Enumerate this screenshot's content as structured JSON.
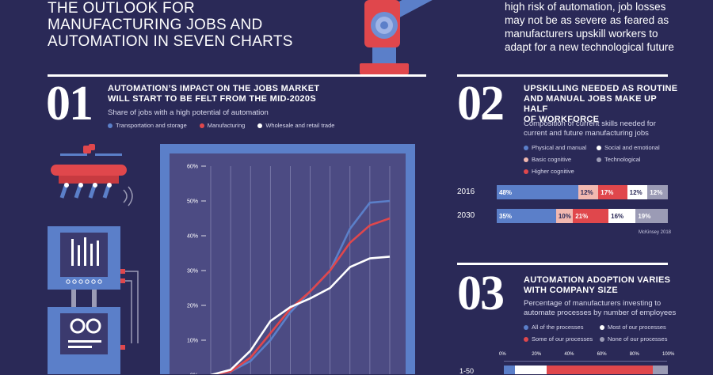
{
  "header": {
    "title_lines": [
      "THE OUTLOOK FOR",
      "MANUFACTURING JOBS AND",
      "AUTOMATION IN SEVEN CHARTS"
    ],
    "intro_lines": [
      "high risk of automation, job losses",
      "may not be as severe as feared as",
      "manufacturers upskill workers to",
      "adapt for a new technological future"
    ]
  },
  "section1": {
    "number": "01",
    "title_lines": [
      "AUTOMATION’S IMPACT ON THE JOBS MARKET",
      "WILL START TO BE FELT FROM THE MID-2020S"
    ],
    "subtitle": "Share of jobs with a high potential of automation",
    "legend": [
      {
        "label": "Transportation and storage",
        "color": "#5b7fc9"
      },
      {
        "label": "Manufacturing",
        "color": "#e0474c"
      },
      {
        "label": "Wholesale and retail trade",
        "color": "#ffffff"
      }
    ]
  },
  "section2": {
    "number": "02",
    "title_lines": [
      "UPSKILLING NEEDED AS ROUTINE",
      "AND MANUAL JOBS MAKE UP HALF",
      "OF WORKFORCE"
    ],
    "subtitle_lines": [
      "Composition of current skills needed for",
      "current and future manufacturing jobs"
    ],
    "legend": [
      {
        "label": "Physical and manual",
        "color": "#5b7fc9"
      },
      {
        "label": "Social and emotional",
        "color": "#ffffff"
      },
      {
        "label": "Basic cognitive",
        "color": "#f2b8b0"
      },
      {
        "label": "Technological",
        "color": "#9b9bb5"
      },
      {
        "label": "Higher cognitive",
        "color": "#e0474c"
      }
    ],
    "source": "McKinsey 2018"
  },
  "section3": {
    "number": "03",
    "title_lines": [
      "AUTOMATION ADOPTION VARIES",
      "WITH COMPANY SIZE"
    ],
    "subtitle_lines": [
      "Percentage of manufacturers investing to",
      "automate processes by number of employees"
    ],
    "legend": [
      {
        "label": "All of the processes",
        "color": "#5b7fc9"
      },
      {
        "label": "Most of our processes",
        "color": "#ffffff"
      },
      {
        "label": "Some of our processes",
        "color": "#e0474c"
      },
      {
        "label": "None of our processes",
        "color": "#9b9bb5"
      }
    ],
    "axis_ticks": [
      "0%",
      "20%",
      "40%",
      "60%",
      "80%",
      "100%"
    ],
    "row_label": "1-50"
  },
  "chart_data": [
    {
      "type": "line",
      "subtitle": "Share of jobs with a high potential of automation",
      "ylim": [
        0,
        60
      ],
      "yticks": [
        "0%",
        "10%",
        "20%",
        "30%",
        "40%",
        "50%",
        "60%"
      ],
      "x": [
        0,
        1,
        2,
        3,
        4,
        5,
        6,
        7,
        8,
        9
      ],
      "series": [
        {
          "name": "Transportation and storage",
          "color": "#5b7fc9",
          "values": [
            0,
            1,
            4,
            10,
            18,
            24,
            30,
            42,
            49.5,
            50
          ]
        },
        {
          "name": "Manufacturing",
          "color": "#e0474c",
          "values": [
            0,
            1,
            5,
            12,
            19,
            24,
            30,
            38,
            43,
            45
          ]
        },
        {
          "name": "Wholesale and retail trade",
          "color": "#ffffff",
          "values": [
            0,
            1.5,
            7,
            15.5,
            19.5,
            22,
            25,
            31,
            33.5,
            34
          ]
        }
      ]
    },
    {
      "type": "bar",
      "stacked": true,
      "categories": [
        "2016",
        "2030"
      ],
      "series": [
        {
          "name": "Physical and manual",
          "color": "#5b7fc9",
          "values": [
            48,
            35
          ],
          "labels": [
            "48%",
            "35%"
          ]
        },
        {
          "name": "Basic cognitive",
          "color": "#f2b8b0",
          "values": [
            12,
            10
          ],
          "labels": [
            "12%",
            "10%"
          ]
        },
        {
          "name": "Higher cognitive",
          "color": "#e0474c",
          "values": [
            17,
            21
          ],
          "labels": [
            "17%",
            "21%"
          ]
        },
        {
          "name": "Social and emotional",
          "color": "#ffffff",
          "values": [
            12,
            16
          ],
          "labels": [
            "12%",
            "16%"
          ]
        },
        {
          "name": "Technological",
          "color": "#9b9bb5",
          "values": [
            12,
            19
          ],
          "labels": [
            "12%",
            "19%"
          ]
        }
      ]
    }
  ]
}
